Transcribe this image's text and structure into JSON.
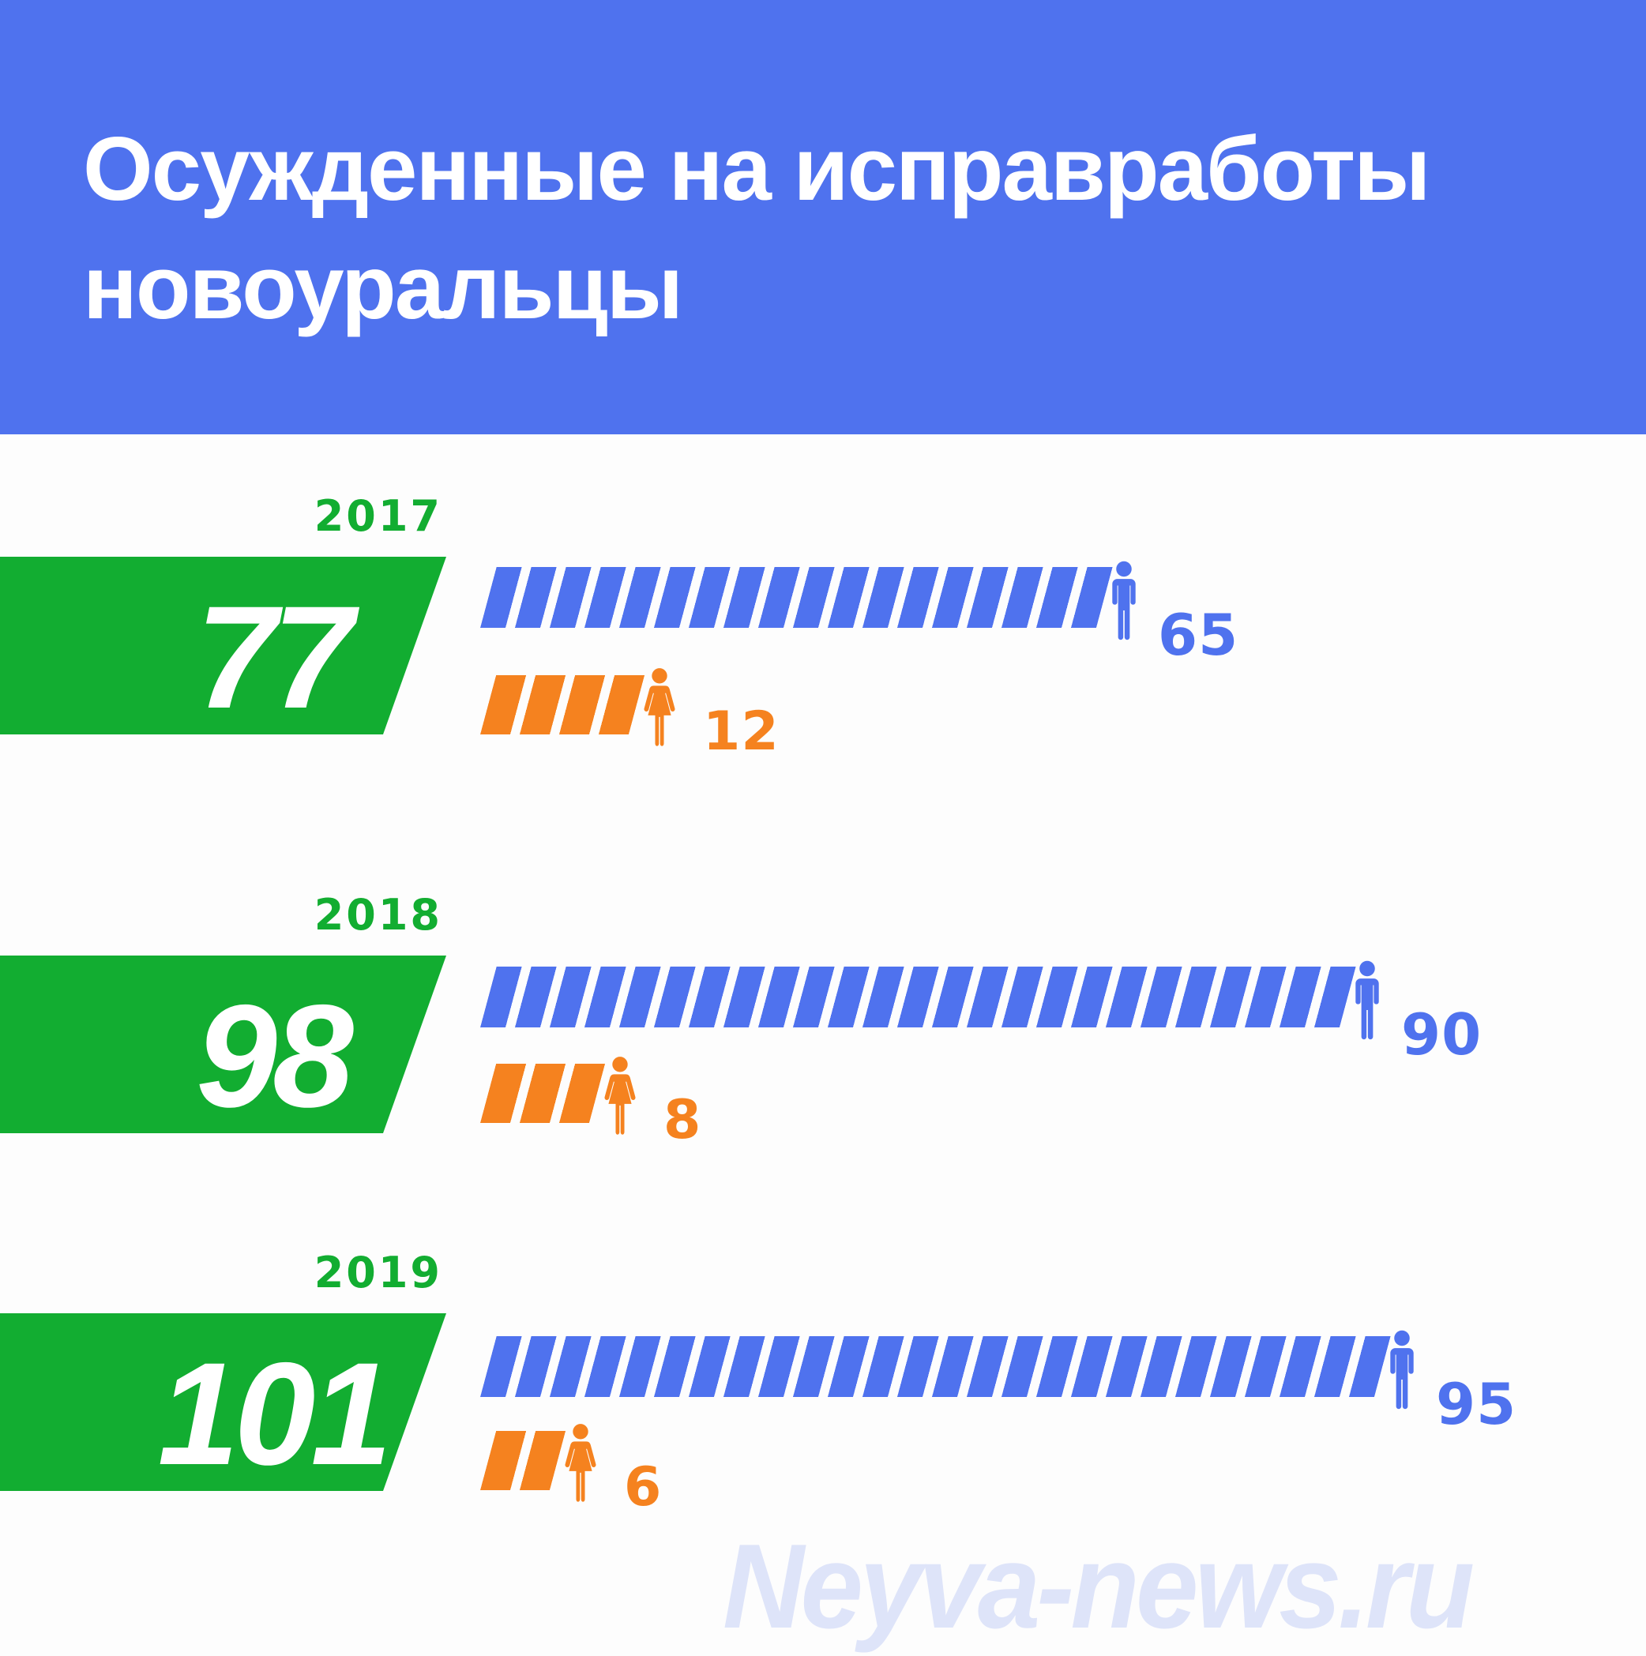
{
  "title": {
    "line1": "Осужденные на исправработы",
    "line2": "новоуральцы"
  },
  "watermark_text": "Neyva-news.ru",
  "colors": {
    "header_bg": "#4F72EE",
    "male_accent": "#4F72EE",
    "total_accent": "#12AD31",
    "female_accent": "#F5821F",
    "watermark": "#DEE4F9",
    "title_text": "#FFFFFF"
  },
  "icons": {
    "male": "man-pictogram-icon",
    "female": "woman-pictogram-icon"
  },
  "chart_data": {
    "type": "bar",
    "orientation": "horizontal",
    "title": "Осужденные на исправработы новоуральцы",
    "categories": [
      "2017",
      "2018",
      "2019"
    ],
    "series": [
      {
        "name": "total",
        "color": "#12AD31",
        "values": [
          77,
          98,
          101
        ]
      },
      {
        "name": "male",
        "color": "#4F72EE",
        "values": [
          65,
          90,
          95
        ]
      },
      {
        "name": "female",
        "color": "#F5821F",
        "values": [
          12,
          8,
          6
        ]
      }
    ],
    "legend_position": "none",
    "grid": false,
    "value_labels_shown": true
  }
}
